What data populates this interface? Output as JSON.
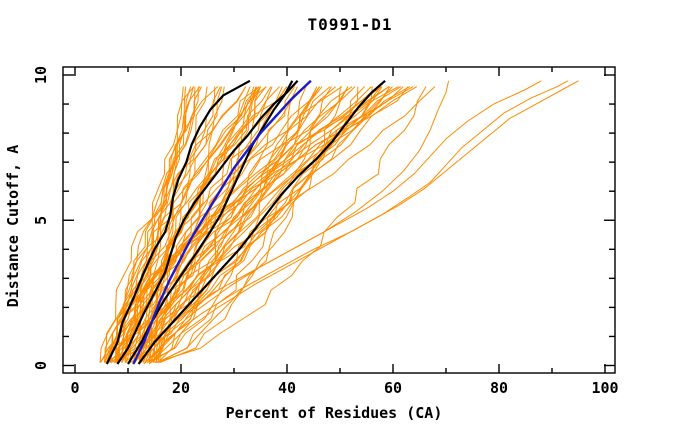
{
  "title": "T0991-D1",
  "chart_data": {
    "type": "line",
    "title": "T0991-D1",
    "xlabel": "Percent of Residues (CA)",
    "ylabel": "Distance Cutoff, A",
    "xlim": [
      0,
      100
    ],
    "ylim": [
      0,
      10
    ],
    "grid": false,
    "legend": "none",
    "x_major_ticks": [
      0,
      20,
      40,
      60,
      80,
      100
    ],
    "x_minor_ticks": [
      10,
      30,
      50,
      70,
      90
    ],
    "y_major_ticks": [
      0,
      5,
      10
    ],
    "y_minor_ticks": [
      1,
      2,
      3,
      4,
      6,
      7,
      8,
      9
    ],
    "colors": {
      "model_curves": "#ff8c00",
      "reference_curves": "#000000",
      "highlight_curve": "#1a1acd",
      "frame": "#000000"
    },
    "series": [
      {
        "name": "black-reference-1",
        "role": "reference",
        "color": "#000000",
        "width": 2.2,
        "points": [
          [
            6,
            0.05
          ],
          [
            8,
            0.8
          ],
          [
            9,
            1.5
          ],
          [
            11,
            2.3
          ],
          [
            13,
            3.2
          ],
          [
            15,
            4.0
          ],
          [
            17,
            4.6
          ],
          [
            18,
            5.2
          ],
          [
            18.5,
            5.8
          ],
          [
            19.5,
            6.4
          ],
          [
            21,
            7.0
          ],
          [
            22,
            7.6
          ],
          [
            23.5,
            8.2
          ],
          [
            25.5,
            8.8
          ],
          [
            28,
            9.3
          ],
          [
            33,
            9.8
          ]
        ]
      },
      {
        "name": "black-reference-2",
        "role": "reference",
        "color": "#000000",
        "width": 2.2,
        "points": [
          [
            8,
            0.05
          ],
          [
            10,
            0.6
          ],
          [
            11.5,
            1.2
          ],
          [
            13,
            1.8
          ],
          [
            15,
            2.5
          ],
          [
            17,
            3.2
          ],
          [
            18,
            3.8
          ],
          [
            19,
            4.4
          ],
          [
            20.5,
            5.0
          ],
          [
            22.5,
            5.6
          ],
          [
            25,
            6.2
          ],
          [
            27.5,
            6.8
          ],
          [
            30,
            7.4
          ],
          [
            32.5,
            7.9
          ],
          [
            35,
            8.5
          ],
          [
            37.5,
            9.0
          ],
          [
            40,
            9.4
          ],
          [
            42,
            9.8
          ]
        ]
      },
      {
        "name": "black-reference-3",
        "role": "reference",
        "color": "#000000",
        "width": 2.2,
        "points": [
          [
            10,
            0.05
          ],
          [
            12.5,
            0.8
          ],
          [
            14.5,
            1.5
          ],
          [
            17,
            2.3
          ],
          [
            20,
            3.1
          ],
          [
            23,
            3.9
          ],
          [
            25.5,
            4.6
          ],
          [
            27.5,
            5.2
          ],
          [
            29,
            5.8
          ],
          [
            30.5,
            6.4
          ],
          [
            32,
            7.0
          ],
          [
            33.5,
            7.6
          ],
          [
            35.5,
            8.2
          ],
          [
            37.5,
            8.8
          ],
          [
            39.5,
            9.3
          ],
          [
            41,
            9.8
          ]
        ]
      },
      {
        "name": "black-reference-4",
        "role": "reference",
        "color": "#000000",
        "width": 2.2,
        "points": [
          [
            12,
            0.05
          ],
          [
            15,
            0.8
          ],
          [
            19,
            1.6
          ],
          [
            23,
            2.4
          ],
          [
            27,
            3.2
          ],
          [
            31,
            4.0
          ],
          [
            34,
            4.7
          ],
          [
            36.5,
            5.3
          ],
          [
            39,
            5.9
          ],
          [
            42,
            6.5
          ],
          [
            45.5,
            7.1
          ],
          [
            48.5,
            7.7
          ],
          [
            51,
            8.3
          ],
          [
            53.5,
            8.9
          ],
          [
            56,
            9.4
          ],
          [
            58.5,
            9.8
          ]
        ]
      },
      {
        "name": "blue-highlight-model",
        "role": "highlight",
        "color": "#1a1acd",
        "width": 2.4,
        "points": [
          [
            11,
            0.05
          ],
          [
            13,
            0.8
          ],
          [
            14.5,
            1.5
          ],
          [
            16,
            2.2
          ],
          [
            18,
            3.0
          ],
          [
            20,
            3.7
          ],
          [
            22,
            4.4
          ],
          [
            24,
            5.0
          ],
          [
            26,
            5.6
          ],
          [
            28,
            6.2
          ],
          [
            30,
            6.8
          ],
          [
            32.5,
            7.4
          ],
          [
            35,
            8.0
          ],
          [
            38,
            8.6
          ],
          [
            41,
            9.2
          ],
          [
            44.5,
            9.8
          ]
        ]
      }
    ],
    "orange_outlier_series": [
      {
        "name": "orange-outlier-1",
        "points": [
          [
            13,
            0.05
          ],
          [
            18,
            1.0
          ],
          [
            24,
            1.8
          ],
          [
            31,
            2.6
          ],
          [
            38,
            3.3
          ],
          [
            45,
            4.0
          ],
          [
            52,
            4.6
          ],
          [
            58,
            5.2
          ],
          [
            63,
            5.8
          ],
          [
            67,
            6.3
          ],
          [
            70,
            6.9
          ],
          [
            73,
            7.5
          ],
          [
            77,
            8.1
          ],
          [
            81,
            8.7
          ],
          [
            86,
            9.2
          ],
          [
            91,
            9.6
          ],
          [
            93,
            9.8
          ]
        ]
      },
      {
        "name": "orange-outlier-2",
        "points": [
          [
            14,
            0.05
          ],
          [
            20,
            1.1
          ],
          [
            27,
            2.0
          ],
          [
            34,
            2.8
          ],
          [
            41,
            3.5
          ],
          [
            48,
            4.2
          ],
          [
            55,
            4.9
          ],
          [
            61,
            5.5
          ],
          [
            66,
            6.1
          ],
          [
            70,
            6.7
          ],
          [
            74,
            7.3
          ],
          [
            78,
            7.9
          ],
          [
            82,
            8.5
          ],
          [
            87,
            9.0
          ],
          [
            92,
            9.5
          ],
          [
            95,
            9.8
          ]
        ]
      },
      {
        "name": "orange-outlier-3",
        "points": [
          [
            12,
            0.05
          ],
          [
            17,
            1.0
          ],
          [
            23,
            1.9
          ],
          [
            29,
            2.7
          ],
          [
            35,
            3.4
          ],
          [
            42,
            4.1
          ],
          [
            49,
            4.8
          ],
          [
            55,
            5.4
          ],
          [
            60,
            6.0
          ],
          [
            64,
            6.6
          ],
          [
            67,
            7.2
          ],
          [
            70,
            7.8
          ],
          [
            74,
            8.4
          ],
          [
            79,
            9.0
          ],
          [
            85,
            9.5
          ],
          [
            88,
            9.8
          ]
        ]
      },
      {
        "name": "orange-outlier-4",
        "points": [
          [
            11,
            0.05
          ],
          [
            15,
            0.9
          ],
          [
            20,
            1.7
          ],
          [
            26,
            2.5
          ],
          [
            33,
            3.2
          ],
          [
            40,
            3.9
          ],
          [
            47,
            4.6
          ],
          [
            53,
            5.3
          ],
          [
            58,
            6.0
          ],
          [
            62,
            6.7
          ],
          [
            65,
            7.4
          ],
          [
            67,
            8.1
          ],
          [
            68.5,
            8.8
          ],
          [
            70,
            9.4
          ],
          [
            70.5,
            9.8
          ]
        ]
      }
    ],
    "orange_bundle": {
      "description": "dense fan of thin orange model curves",
      "count": 72,
      "seed": 7,
      "cutoff_start": 0.1,
      "cutoff_end": 9.8,
      "cutoff_step": 0.5,
      "start_percent_range": [
        4.5,
        16
      ],
      "end_percent_range": [
        21,
        70
      ],
      "end_skew_exponent": 1.35,
      "shape_exponent_range": [
        0.55,
        1.8
      ],
      "jitter_percent": 1.1
    }
  }
}
